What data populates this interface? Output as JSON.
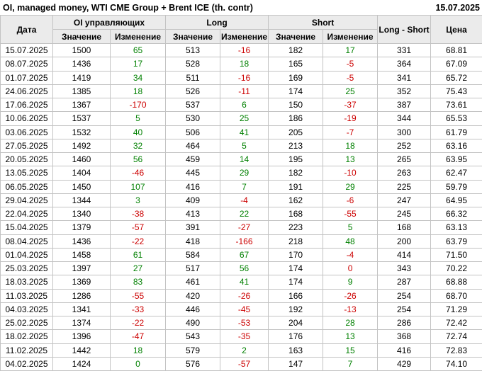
{
  "page": {
    "title": "OI, managed money, WTI CME Group + Brent ICE (th. contr)",
    "report_date": "15.07.2025"
  },
  "colors": {
    "positive": "#008000",
    "negative": "#cc0000",
    "header_bg": "#ebebeb",
    "grid_line": "#c3c3c3"
  },
  "table": {
    "headers": {
      "date": "Дата",
      "oi_group": "OI управляющих",
      "long_group": "Long",
      "short_group": "Short",
      "value": "Значение",
      "change": "Изменение",
      "long_short": "Long - Short",
      "price": "Цена"
    }
  },
  "chart_data": {
    "type": "table",
    "title": "OI, managed money, WTI CME Group + Brent ICE (th. contr)",
    "report_date": "15.07.2025",
    "columns": [
      "Дата",
      "OI управляющих — Значение",
      "OI управляющих — Изменение",
      "Long — Значение",
      "Long — Изменение",
      "Short — Значение",
      "Short — Изменение",
      "Long - Short",
      "Цена"
    ],
    "rows": [
      [
        "15.07.2025",
        1500,
        65,
        513,
        -16,
        182,
        17,
        331,
        "68.81"
      ],
      [
        "08.07.2025",
        1436,
        17,
        528,
        18,
        165,
        -5,
        364,
        "67.09"
      ],
      [
        "01.07.2025",
        1419,
        34,
        511,
        -16,
        169,
        -5,
        341,
        "65.72"
      ],
      [
        "24.06.2025",
        1385,
        18,
        526,
        -11,
        174,
        25,
        352,
        "75.43"
      ],
      [
        "17.06.2025",
        1367,
        -170,
        537,
        6,
        150,
        -37,
        387,
        "73.61"
      ],
      [
        "10.06.2025",
        1537,
        5,
        530,
        25,
        186,
        -19,
        344,
        "65.53"
      ],
      [
        "03.06.2025",
        1532,
        40,
        506,
        41,
        205,
        -7,
        300,
        "61.79"
      ],
      [
        "27.05.2025",
        1492,
        32,
        464,
        5,
        213,
        18,
        252,
        "63.16"
      ],
      [
        "20.05.2025",
        1460,
        56,
        459,
        14,
        195,
        13,
        265,
        "63.95"
      ],
      [
        "13.05.2025",
        1404,
        -46,
        445,
        29,
        182,
        -10,
        263,
        "62.47"
      ],
      [
        "06.05.2025",
        1450,
        107,
        416,
        7,
        191,
        29,
        225,
        "59.79"
      ],
      [
        "29.04.2025",
        1344,
        3,
        409,
        -4,
        162,
        -6,
        247,
        "64.95"
      ],
      [
        "22.04.2025",
        1340,
        -38,
        413,
        22,
        168,
        -55,
        245,
        "66.32"
      ],
      [
        "15.04.2025",
        1379,
        -57,
        391,
        -27,
        223,
        5,
        168,
        "63.13"
      ],
      [
        "08.04.2025",
        1436,
        -22,
        418,
        -166,
        218,
        48,
        200,
        "63.79"
      ],
      [
        "01.04.2025",
        1458,
        61,
        584,
        67,
        170,
        -4,
        414,
        "71.50"
      ],
      [
        "25.03.2025",
        1397,
        27,
        517,
        56,
        174,
        0,
        343,
        "70.22"
      ],
      [
        "18.03.2025",
        1369,
        83,
        461,
        41,
        174,
        9,
        287,
        "68.88"
      ],
      [
        "11.03.2025",
        1286,
        -55,
        420,
        -26,
        166,
        -26,
        254,
        "68.70"
      ],
      [
        "04.03.2025",
        1341,
        -33,
        446,
        -45,
        192,
        -13,
        254,
        "71.29"
      ],
      [
        "25.02.2025",
        1374,
        -22,
        490,
        -53,
        204,
        28,
        286,
        "72.42"
      ],
      [
        "18.02.2025",
        1396,
        -47,
        543,
        -35,
        176,
        13,
        368,
        "72.74"
      ],
      [
        "11.02.2025",
        1442,
        18,
        579,
        2,
        163,
        15,
        416,
        "72.83"
      ],
      [
        "04.02.2025",
        1424,
        0,
        576,
        -57,
        147,
        7,
        429,
        "74.10"
      ]
    ],
    "change_columns": [
      2,
      4,
      6
    ],
    "change_colors": [
      [
        "g",
        "r",
        "g"
      ],
      [
        "g",
        "g",
        "r"
      ],
      [
        "g",
        "r",
        "r"
      ],
      [
        "g",
        "r",
        "g"
      ],
      [
        "r",
        "g",
        "r"
      ],
      [
        "g",
        "g",
        "r"
      ],
      [
        "g",
        "g",
        "r"
      ],
      [
        "g",
        "g",
        "g"
      ],
      [
        "g",
        "g",
        "g"
      ],
      [
        "r",
        "g",
        "r"
      ],
      [
        "g",
        "g",
        "g"
      ],
      [
        "g",
        "r",
        "r"
      ],
      [
        "r",
        "g",
        "r"
      ],
      [
        "r",
        "r",
        "g"
      ],
      [
        "r",
        "r",
        "g"
      ],
      [
        "g",
        "g",
        "r"
      ],
      [
        "g",
        "g",
        "r"
      ],
      [
        "g",
        "g",
        "g"
      ],
      [
        "r",
        "r",
        "r"
      ],
      [
        "r",
        "r",
        "r"
      ],
      [
        "r",
        "r",
        "g"
      ],
      [
        "r",
        "r",
        "g"
      ],
      [
        "g",
        "g",
        "g"
      ],
      [
        "g",
        "r",
        "g"
      ]
    ]
  }
}
